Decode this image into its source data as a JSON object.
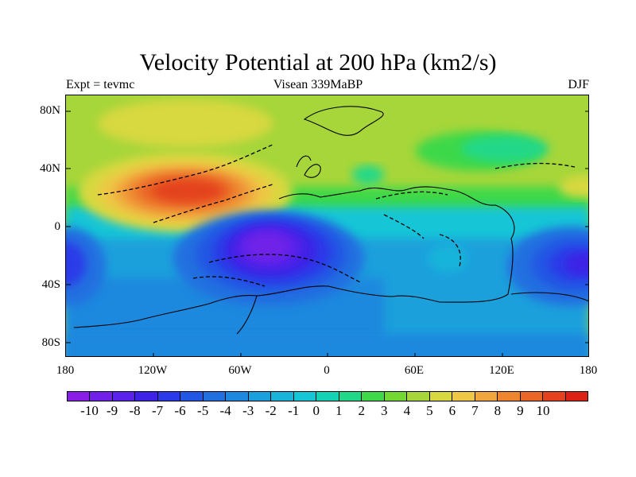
{
  "title": "Velocity Potential at 200 hPa (km2/s)",
  "subtitle_left": "Expt = tevmc",
  "subtitle_center": "Visean 339MaBP",
  "subtitle_right": "DJF",
  "y_axis_labels": [
    "80N",
    "40N",
    "0",
    "40S",
    "80S"
  ],
  "x_axis_labels": [
    "180",
    "120W",
    "60W",
    "0",
    "60E",
    "120E",
    "180"
  ],
  "colorbar": {
    "labels": [
      "-10",
      "-9",
      "-8",
      "-7",
      "-6",
      "-5",
      "-4",
      "-3",
      "-2",
      "-1",
      "0",
      "1",
      "2",
      "3",
      "4",
      "5",
      "6",
      "7",
      "8",
      "9",
      "10"
    ],
    "colors": [
      "#8a1ee6",
      "#7020e8",
      "#5a22ea",
      "#3e22e6",
      "#2a3ae8",
      "#2256e4",
      "#2070e0",
      "#1e88de",
      "#1aa0dc",
      "#18b4da",
      "#16c6d6",
      "#16d2b4",
      "#20d888",
      "#3ed848",
      "#74d832",
      "#a6d63a",
      "#d8d840",
      "#eec844",
      "#f0a63c",
      "#ee8630",
      "#ea6626",
      "#e4421e",
      "#dc2214"
    ]
  }
}
